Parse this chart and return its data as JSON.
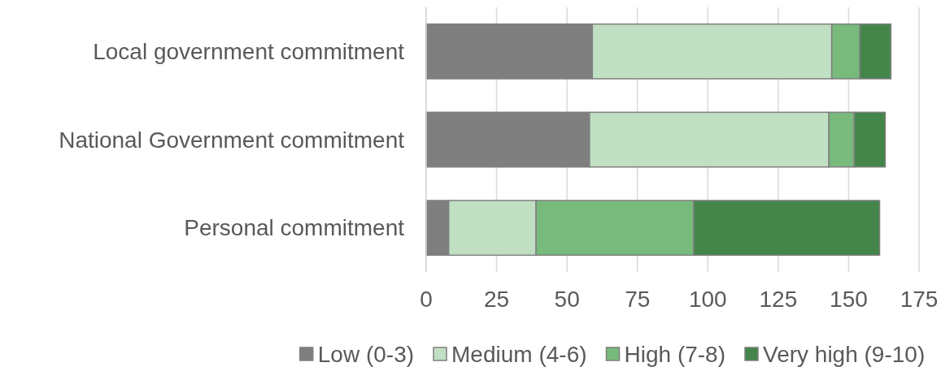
{
  "chart_data": {
    "type": "bar",
    "orientation": "horizontal",
    "stacked": true,
    "categories": [
      "Local government commitment",
      "National Government commitment",
      "Personal commitment"
    ],
    "series": [
      {
        "name": "Low (0-3)",
        "color": "#7f7f7f",
        "values": [
          59,
          58,
          8
        ]
      },
      {
        "name": "Medium (4-6)",
        "color": "#c1e0c3",
        "values": [
          85,
          85,
          31
        ]
      },
      {
        "name": "High (7-8)",
        "color": "#78b97c",
        "values": [
          10,
          9,
          56
        ]
      },
      {
        "name": "Very high (9-10)",
        "color": "#44864a",
        "values": [
          11,
          11,
          66
        ]
      }
    ],
    "xlim": [
      0,
      175
    ],
    "xticks": [
      0,
      25,
      50,
      75,
      100,
      125,
      150,
      175
    ],
    "grid": "x",
    "legend": "bottom"
  }
}
